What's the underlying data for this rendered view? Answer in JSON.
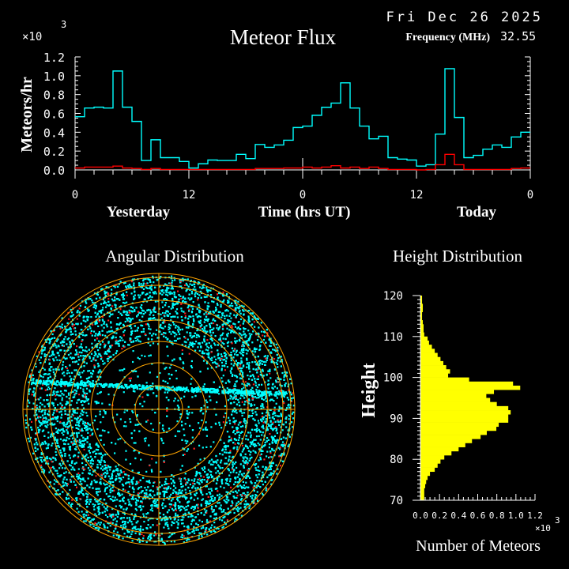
{
  "header": {
    "date": "Fri Dec 26 2025",
    "frequency_label": "Frequency (MHz)",
    "frequency_value": "32.55"
  },
  "colors": {
    "background": "#000000",
    "all_meteors": "#00ffff",
    "second_series": "#ff0000",
    "height_bars": "#ffff00",
    "grid": "#ffa500",
    "axes": "#ffffff"
  },
  "chart_data": [
    {
      "type": "line",
      "title": "Meteor Flux",
      "ylabel": "Meteors/hr",
      "xlabel": "Time (hrs UT)",
      "day_labels": [
        "Yesterday",
        "Today"
      ],
      "y_multiplier": "×10",
      "y_multiplier_exp": "3",
      "ylim": [
        0,
        1.2
      ],
      "yticks": [
        "0.0",
        "0.2",
        "0.4",
        "0.6",
        "0.8",
        "1.0",
        "1.2"
      ],
      "xlim": [
        0,
        48
      ],
      "xtick_labels": [
        "0",
        "12",
        "0",
        "12",
        "0"
      ],
      "step": "hourly",
      "series": [
        {
          "color": "#00ffff",
          "values": [
            0.565,
            0.657,
            0.666,
            0.657,
            1.05,
            0.666,
            0.515,
            0.1,
            0.32,
            0.13,
            0.13,
            0.09,
            0.02,
            0.065,
            0.105,
            0.1,
            0.1,
            0.165,
            0.12,
            0.27,
            0.24,
            0.265,
            0.315,
            0.45,
            0.465,
            0.58,
            0.665,
            0.71,
            0.925,
            0.657,
            0.465,
            0.33,
            0.357,
            0.13,
            0.115,
            0.105,
            0.04,
            0.055,
            0.38,
            1.075,
            0.557,
            0.13,
            0.155,
            0.22,
            0.265,
            0.24,
            0.35,
            0.4
          ]
        },
        {
          "color": "#ff0000",
          "values": [
            0.02,
            0.03,
            0.03,
            0.03,
            0.04,
            0.02,
            0.015,
            0.005,
            0.015,
            0.005,
            0.005,
            0.005,
            0.005,
            0.005,
            0.005,
            0.005,
            0.005,
            0.005,
            0.005,
            0.015,
            0.015,
            0.015,
            0.02,
            0.02,
            0.03,
            0.02,
            0.03,
            0.045,
            0.02,
            0.03,
            0.015,
            0.03,
            0.015,
            0.005,
            0.005,
            0.005,
            0.0,
            0.005,
            0.055,
            0.165,
            0.055,
            0.005,
            0.005,
            0.005,
            0.005,
            0.005,
            0.015,
            0.02
          ]
        }
      ]
    },
    {
      "type": "scatter",
      "title": "Angular Distribution"
    },
    {
      "type": "bar",
      "orientation": "horizontal",
      "title": "Height Distribution",
      "ylabel": "Height",
      "xlabel": "Number of Meteors",
      "x_multiplier": "×10",
      "x_multiplier_exp": "3",
      "xlim": [
        0,
        1.2
      ],
      "xticks": [
        "0.0",
        "0.2",
        "0.4",
        "0.6",
        "0.8",
        "1.0",
        "1.2"
      ],
      "ylim": [
        70,
        120
      ],
      "yticks": [
        "70",
        "80",
        "90",
        "100",
        "110",
        "120"
      ],
      "bin_start": 70,
      "bin_width": 1,
      "values": [
        0.04,
        0.04,
        0.04,
        0.05,
        0.06,
        0.075,
        0.1,
        0.15,
        0.18,
        0.21,
        0.25,
        0.325,
        0.4,
        0.47,
        0.54,
        0.63,
        0.695,
        0.795,
        0.82,
        0.92,
        0.92,
        0.945,
        0.92,
        0.8,
        0.73,
        0.69,
        0.77,
        1.045,
        0.97,
        0.51,
        0.29,
        0.31,
        0.27,
        0.24,
        0.21,
        0.18,
        0.15,
        0.12,
        0.09,
        0.075,
        0.04,
        0.033,
        0.033,
        0.025,
        0.017,
        0.017,
        0.025,
        0.025,
        0.017,
        0.017
      ]
    }
  ]
}
